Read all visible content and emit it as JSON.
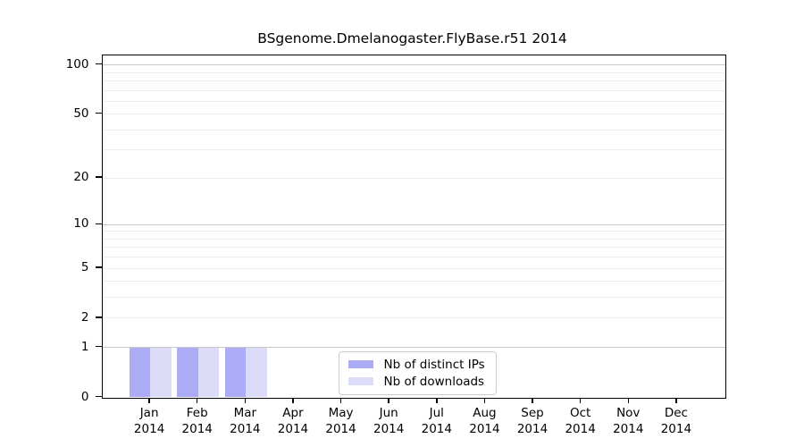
{
  "chart_data": {
    "type": "bar",
    "title": "BSgenome.Dmelanogaster.FlyBase.r51 2014",
    "categories": [
      "Jan",
      "Feb",
      "Mar",
      "Apr",
      "May",
      "Jun",
      "Jul",
      "Aug",
      "Sep",
      "Oct",
      "Nov",
      "Dec"
    ],
    "year": "2014",
    "series": [
      {
        "name": "Nb of distinct IPs",
        "color": "#ababf6",
        "values": [
          1,
          1,
          1,
          0,
          0,
          0,
          0,
          0,
          0,
          0,
          0,
          0
        ]
      },
      {
        "name": "Nb of downloads",
        "color": "#dcdcf9",
        "values": [
          1,
          1,
          1,
          0,
          0,
          0,
          0,
          0,
          0,
          0,
          0,
          0
        ]
      }
    ],
    "yscale": "log1p",
    "ylim": [
      0,
      115
    ],
    "yticks": [
      0,
      1,
      2,
      5,
      10,
      20,
      50,
      100
    ],
    "major_gridlines": [
      1,
      10,
      100
    ],
    "minor_gridlines": [
      2,
      3,
      4,
      5,
      6,
      7,
      8,
      9,
      20,
      30,
      40,
      50,
      60,
      70,
      80,
      90
    ],
    "grid": true,
    "legend_position": "bottom-center",
    "xlabel": "",
    "ylabel": ""
  },
  "colors": {
    "major_grid": "#c8c8c8",
    "minor_grid": "#ededed",
    "spine": "#000000",
    "legend_border": "#cccccc",
    "background": "#ffffff"
  }
}
